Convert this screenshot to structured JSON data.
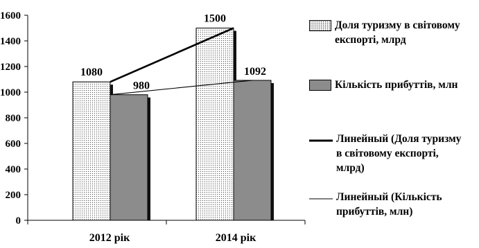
{
  "chart_data": {
    "type": "bar",
    "categories": [
      "2012 рік",
      "2014 рік"
    ],
    "series": [
      {
        "name": "Доля туризму в світовому експорті, млрд",
        "values": [
          1080,
          1500
        ],
        "color": "#ffffff",
        "pattern": "dots"
      },
      {
        "name": "Кількість прибуттів, млн",
        "values": [
          980,
          1092
        ],
        "color": "#8c8c8c",
        "pattern": "solid"
      }
    ],
    "trendlines": [
      {
        "name": "Линейный (Доля туризму в світовому експорті, млрд)",
        "series": 0,
        "color": "#000000",
        "weight": "thick"
      },
      {
        "name": "Линейный (Кількість прибуттів, млн)",
        "series": 1,
        "color": "#000000",
        "weight": "thin"
      }
    ],
    "data_labels": [
      "1080",
      "980",
      "1500",
      "1092"
    ],
    "y_ticks": [
      "0",
      "200",
      "400",
      "600",
      "800",
      "1000",
      "1200",
      "1400",
      "1600"
    ],
    "ylim": [
      0,
      1600
    ],
    "grid": false,
    "legend_position": "right"
  }
}
